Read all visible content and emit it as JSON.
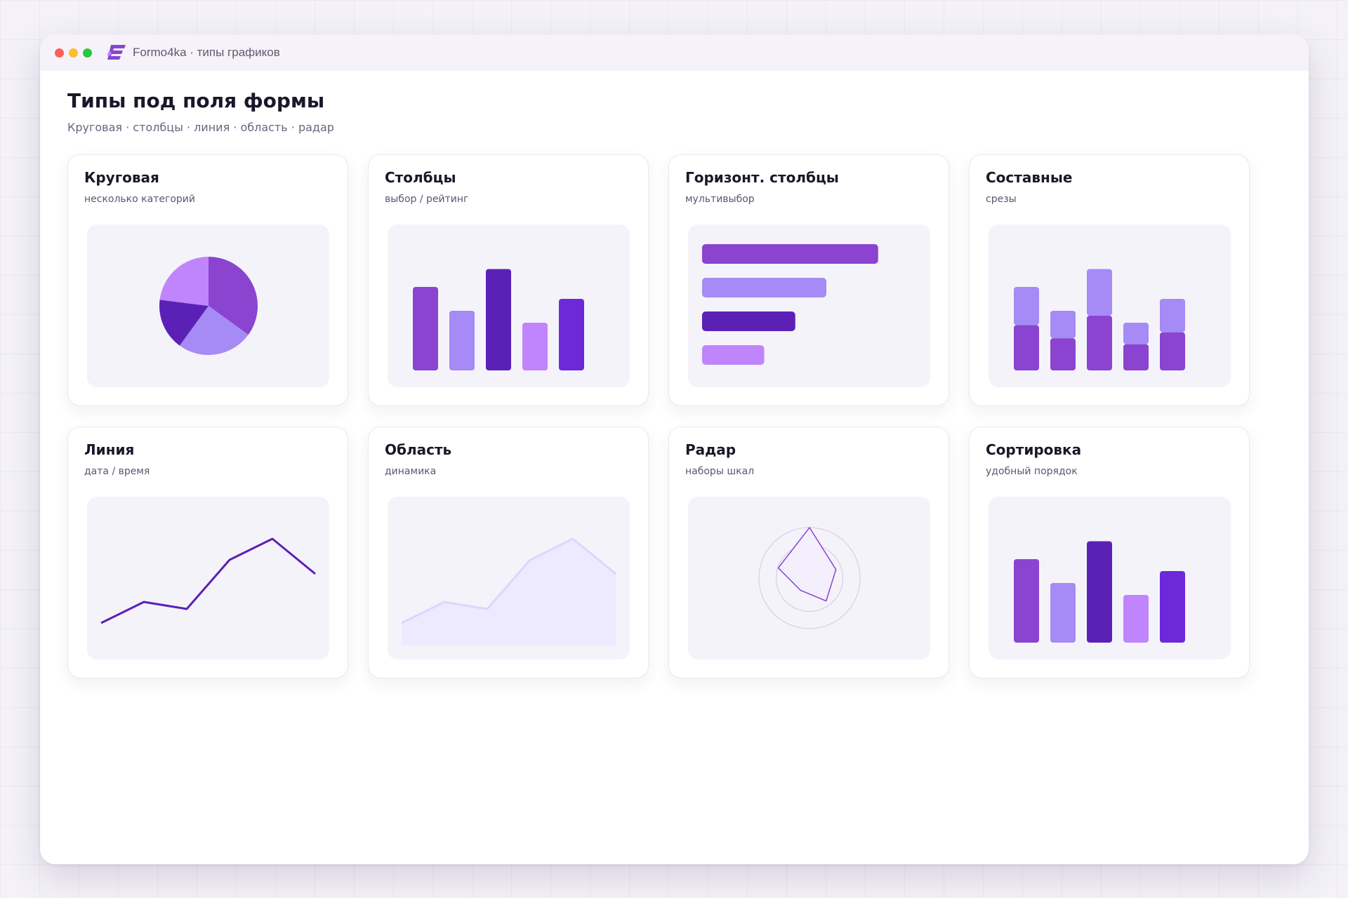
{
  "window": {
    "title": "Formo4ka · типы графиков",
    "logo": "formo4ka-logo-icon",
    "controls": [
      "close",
      "minimize",
      "maximize"
    ]
  },
  "page": {
    "title": "Типы под поля формы",
    "subtitle": "Круговая · столбцы · линия · область · радар"
  },
  "colors": {
    "accent_primary": "#8a44d0",
    "accent_light": "#a68af5",
    "accent_dark": "#5b21b6",
    "accent_pink": "#c084fc",
    "accent_violet": "#6d28d9",
    "chart_background": "#f5f3fa"
  },
  "cards": [
    {
      "title": "Круговая",
      "subtitle": "несколько категорий"
    },
    {
      "title": "Столбцы",
      "subtitle": "выбор / рейтинг"
    },
    {
      "title": "Горизонт. столбцы",
      "subtitle": "мультивыбор"
    },
    {
      "title": "Составные",
      "subtitle": "срезы"
    },
    {
      "title": "Линия",
      "subtitle": "дата / время"
    },
    {
      "title": "Область",
      "subtitle": "динамика"
    },
    {
      "title": "Радар",
      "subtitle": "наборы шкал"
    },
    {
      "title": "Сортировка",
      "subtitle": "удобный порядок"
    }
  ],
  "chart_data": [
    {
      "type": "pie",
      "slices": [
        {
          "value": 35,
          "color": "#8a44d0"
        },
        {
          "value": 25,
          "color": "#a68af5"
        },
        {
          "value": 17,
          "color": "#5b21b6"
        },
        {
          "value": 23,
          "color": "#c084fc"
        }
      ]
    },
    {
      "type": "bar",
      "values": [
        70,
        50,
        85,
        40,
        60
      ],
      "colors": [
        "#8a44d0",
        "#a68af5",
        "#5b21b6",
        "#c084fc",
        "#6d28d9"
      ],
      "ylim": [
        0,
        100
      ]
    },
    {
      "type": "bar",
      "orientation": "horizontal",
      "values": [
        85,
        60,
        45,
        30
      ],
      "colors": [
        "#8a44d0",
        "#a68af5",
        "#5b21b6",
        "#c084fc"
      ],
      "xlim": [
        0,
        100
      ]
    },
    {
      "type": "bar",
      "stacked": true,
      "series": [
        {
          "values": [
            38,
            27,
            46,
            22,
            32
          ],
          "color": "#8a44d0"
        },
        {
          "values": [
            32,
            23,
            39,
            18,
            28
          ],
          "color": "#a68af5"
        }
      ],
      "ylim": [
        0,
        100
      ]
    },
    {
      "type": "line",
      "values": [
        22,
        37,
        32,
        67,
        82,
        57
      ],
      "color": "#5b21b6",
      "ylim": [
        0,
        100
      ]
    },
    {
      "type": "area",
      "values": [
        22,
        37,
        32,
        67,
        82,
        57
      ],
      "color": "#ddd6fe",
      "fill": "#ede9fe",
      "ylim": [
        0,
        100
      ]
    },
    {
      "type": "radar",
      "values": [
        100,
        55,
        56,
        30,
        65
      ],
      "max": 100,
      "color": "#8a44d0",
      "fill": "#f3effd"
    },
    {
      "type": "bar",
      "values": [
        70,
        50,
        85,
        40,
        60
      ],
      "colors": [
        "#8a44d0",
        "#a68af5",
        "#5b21b6",
        "#c084fc",
        "#6d28d9"
      ],
      "ylim": [
        0,
        100
      ]
    }
  ]
}
